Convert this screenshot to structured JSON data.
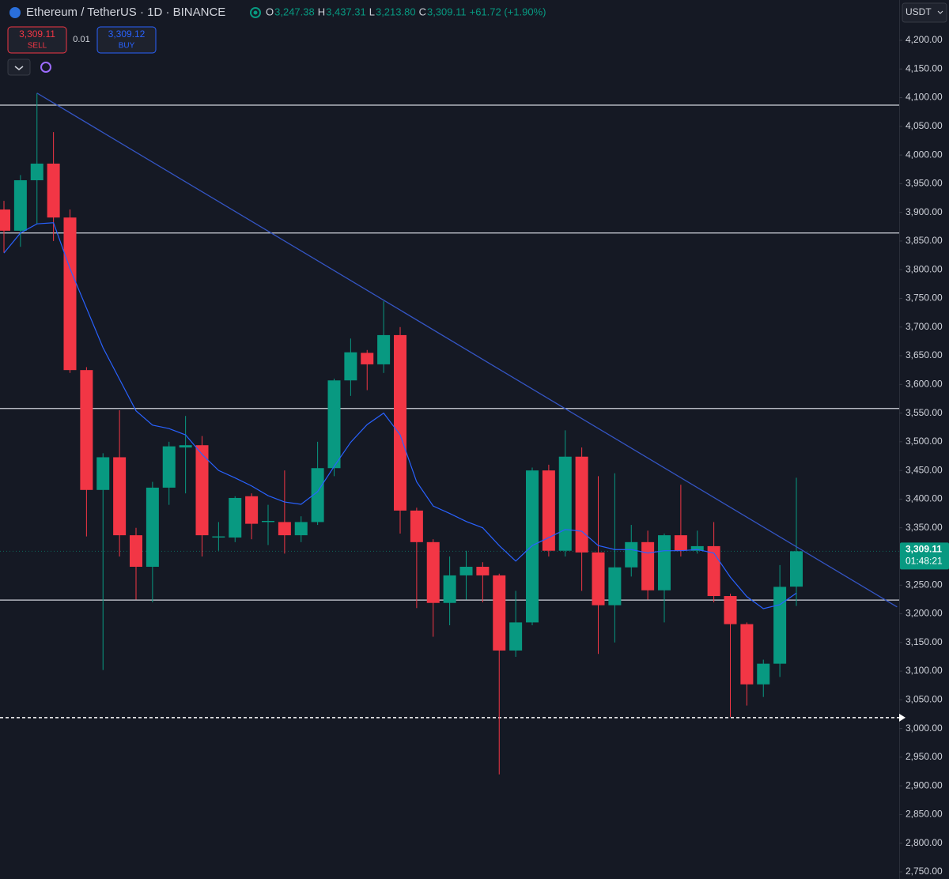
{
  "chart_data": {
    "type": "candlestick",
    "symbol": "Ethereum / TetherUS · 1D · BINANCE",
    "ohlc_labels": [
      {
        "key": "O",
        "label": "3,247.38"
      },
      {
        "key": "H",
        "label": "3,437.31"
      },
      {
        "key": "L",
        "label": "3,213.80"
      },
      {
        "key": "C",
        "label": "3,309.11"
      }
    ],
    "change_label": "+61.72 (+1.90%)",
    "sell": {
      "price": "3,309.11",
      "label": "SELL"
    },
    "spread": "0.01",
    "buy": {
      "price": "3,309.12",
      "label": "BUY"
    },
    "currency": "USDT",
    "up_color": "#089981",
    "down_color": "#f23645",
    "open": [
      3905,
      3868,
      3956,
      3985,
      3891,
      3625,
      3416,
      3473,
      3337,
      3282,
      3420,
      3490,
      3494,
      3333,
      3333,
      3405,
      3360,
      3360,
      3337,
      3360,
      3454,
      3607,
      3655,
      3635,
      3686,
      3380,
      3325,
      3219,
      3267,
      3282,
      3267,
      3136,
      3185,
      3450,
      3310,
      3474,
      3307,
      3215,
      3281,
      3325,
      3241,
      3337,
      3310,
      3318,
      3231,
      3182,
      3077,
      3113,
      3247.38
    ],
    "high": [
      3920,
      3965,
      4108,
      4040,
      3905,
      3630,
      3480,
      3555,
      3350,
      3430,
      3500,
      3545,
      3510,
      3360,
      3405,
      3410,
      3390,
      3450,
      3370,
      3500,
      3610,
      3680,
      3660,
      3745,
      3700,
      3385,
      3330,
      3300,
      3310,
      3290,
      3270,
      3240,
      3455,
      3460,
      3520,
      3490,
      3440,
      3445,
      3355,
      3345,
      3340,
      3425,
      3345,
      3360,
      3235,
      3185,
      3120,
      3285,
      3437.31
    ],
    "low": [
      3830,
      3840,
      3880,
      3850,
      3620,
      3335,
      3102,
      3300,
      3225,
      3220,
      3390,
      3410,
      3300,
      3310,
      3325,
      3330,
      3320,
      3305,
      3325,
      3355,
      3440,
      3580,
      3590,
      3620,
      3340,
      3210,
      3160,
      3180,
      3225,
      3220,
      2920,
      3125,
      3180,
      3300,
      3300,
      3240,
      3130,
      3150,
      3265,
      3225,
      3185,
      3300,
      3305,
      3220,
      3020,
      3040,
      3055,
      3090,
      3213.8
    ],
    "close": [
      3868,
      3956,
      3985,
      3891,
      3625,
      3416,
      3473,
      3337,
      3282,
      3420,
      3492,
      3494,
      3337,
      3335,
      3402,
      3357,
      3362,
      3337,
      3360,
      3454,
      3607,
      3656,
      3635,
      3686,
      3380,
      3325,
      3219,
      3267,
      3282,
      3267,
      3136,
      3185,
      3450,
      3310,
      3474,
      3307,
      3215,
      3281,
      3325,
      3241,
      3337,
      3310,
      3318,
      3231,
      3182,
      3077,
      3113,
      3247,
      3309.11
    ],
    "ma": {
      "color": "#2962ff",
      "values": [
        3829,
        3864,
        3880,
        3882,
        3802,
        3733,
        3664,
        3609,
        3554,
        3529,
        3523,
        3512,
        3478,
        3450,
        3437,
        3423,
        3406,
        3395,
        3391,
        3413,
        3457,
        3499,
        3530,
        3550,
        3512,
        3430,
        3388,
        3375,
        3361,
        3350,
        3319,
        3292,
        3319,
        3333,
        3347,
        3344,
        3319,
        3312,
        3312,
        3306,
        3310,
        3310,
        3312,
        3306,
        3264,
        3230,
        3209,
        3216,
        3236
      ]
    },
    "levels": [
      4087,
      3864,
      3558,
      3224
    ],
    "dashed_level": 3019,
    "trendline": {
      "color": "#3455c4",
      "x": [
        2,
        54.1
      ],
      "y": [
        4108,
        3212
      ]
    },
    "last_price": {
      "value": 3309.11,
      "label": "3,309.11"
    },
    "countdown": "01:48:21",
    "ylim": [
      2735,
      4245
    ],
    "yticks": [
      {
        "value": 4200,
        "label": "4,200.00"
      },
      {
        "value": 4150,
        "label": "4,150.00"
      },
      {
        "value": 4100,
        "label": "4,100.00"
      },
      {
        "value": 4050,
        "label": "4,050.00"
      },
      {
        "value": 4000,
        "label": "4,000.00"
      },
      {
        "value": 3950,
        "label": "3,950.00"
      },
      {
        "value": 3900,
        "label": "3,900.00"
      },
      {
        "value": 3850,
        "label": "3,850.00"
      },
      {
        "value": 3800,
        "label": "3,800.00"
      },
      {
        "value": 3750,
        "label": "3,750.00"
      },
      {
        "value": 3700,
        "label": "3,700.00"
      },
      {
        "value": 3650,
        "label": "3,650.00"
      },
      {
        "value": 3600,
        "label": "3,600.00"
      },
      {
        "value": 3550,
        "label": "3,550.00"
      },
      {
        "value": 3500,
        "label": "3,500.00"
      },
      {
        "value": 3450,
        "label": "3,450.00"
      },
      {
        "value": 3400,
        "label": "3,400.00"
      },
      {
        "value": 3350,
        "label": "3,350.00"
      },
      {
        "value": 3300,
        "label": "3,300.00"
      },
      {
        "value": 3250,
        "label": "3,250.00"
      },
      {
        "value": 3200,
        "label": "3,200.00"
      },
      {
        "value": 3150,
        "label": "3,150.00"
      },
      {
        "value": 3100,
        "label": "3,100.00"
      },
      {
        "value": 3050,
        "label": "3,050.00"
      },
      {
        "value": 3000,
        "label": "3,000.00"
      },
      {
        "value": 2950,
        "label": "2,950.00"
      },
      {
        "value": 2900,
        "label": "2,900.00"
      },
      {
        "value": 2850,
        "label": "2,850.00"
      },
      {
        "value": 2800,
        "label": "2,800.00"
      },
      {
        "value": 2750,
        "label": "2,750.00"
      }
    ]
  }
}
